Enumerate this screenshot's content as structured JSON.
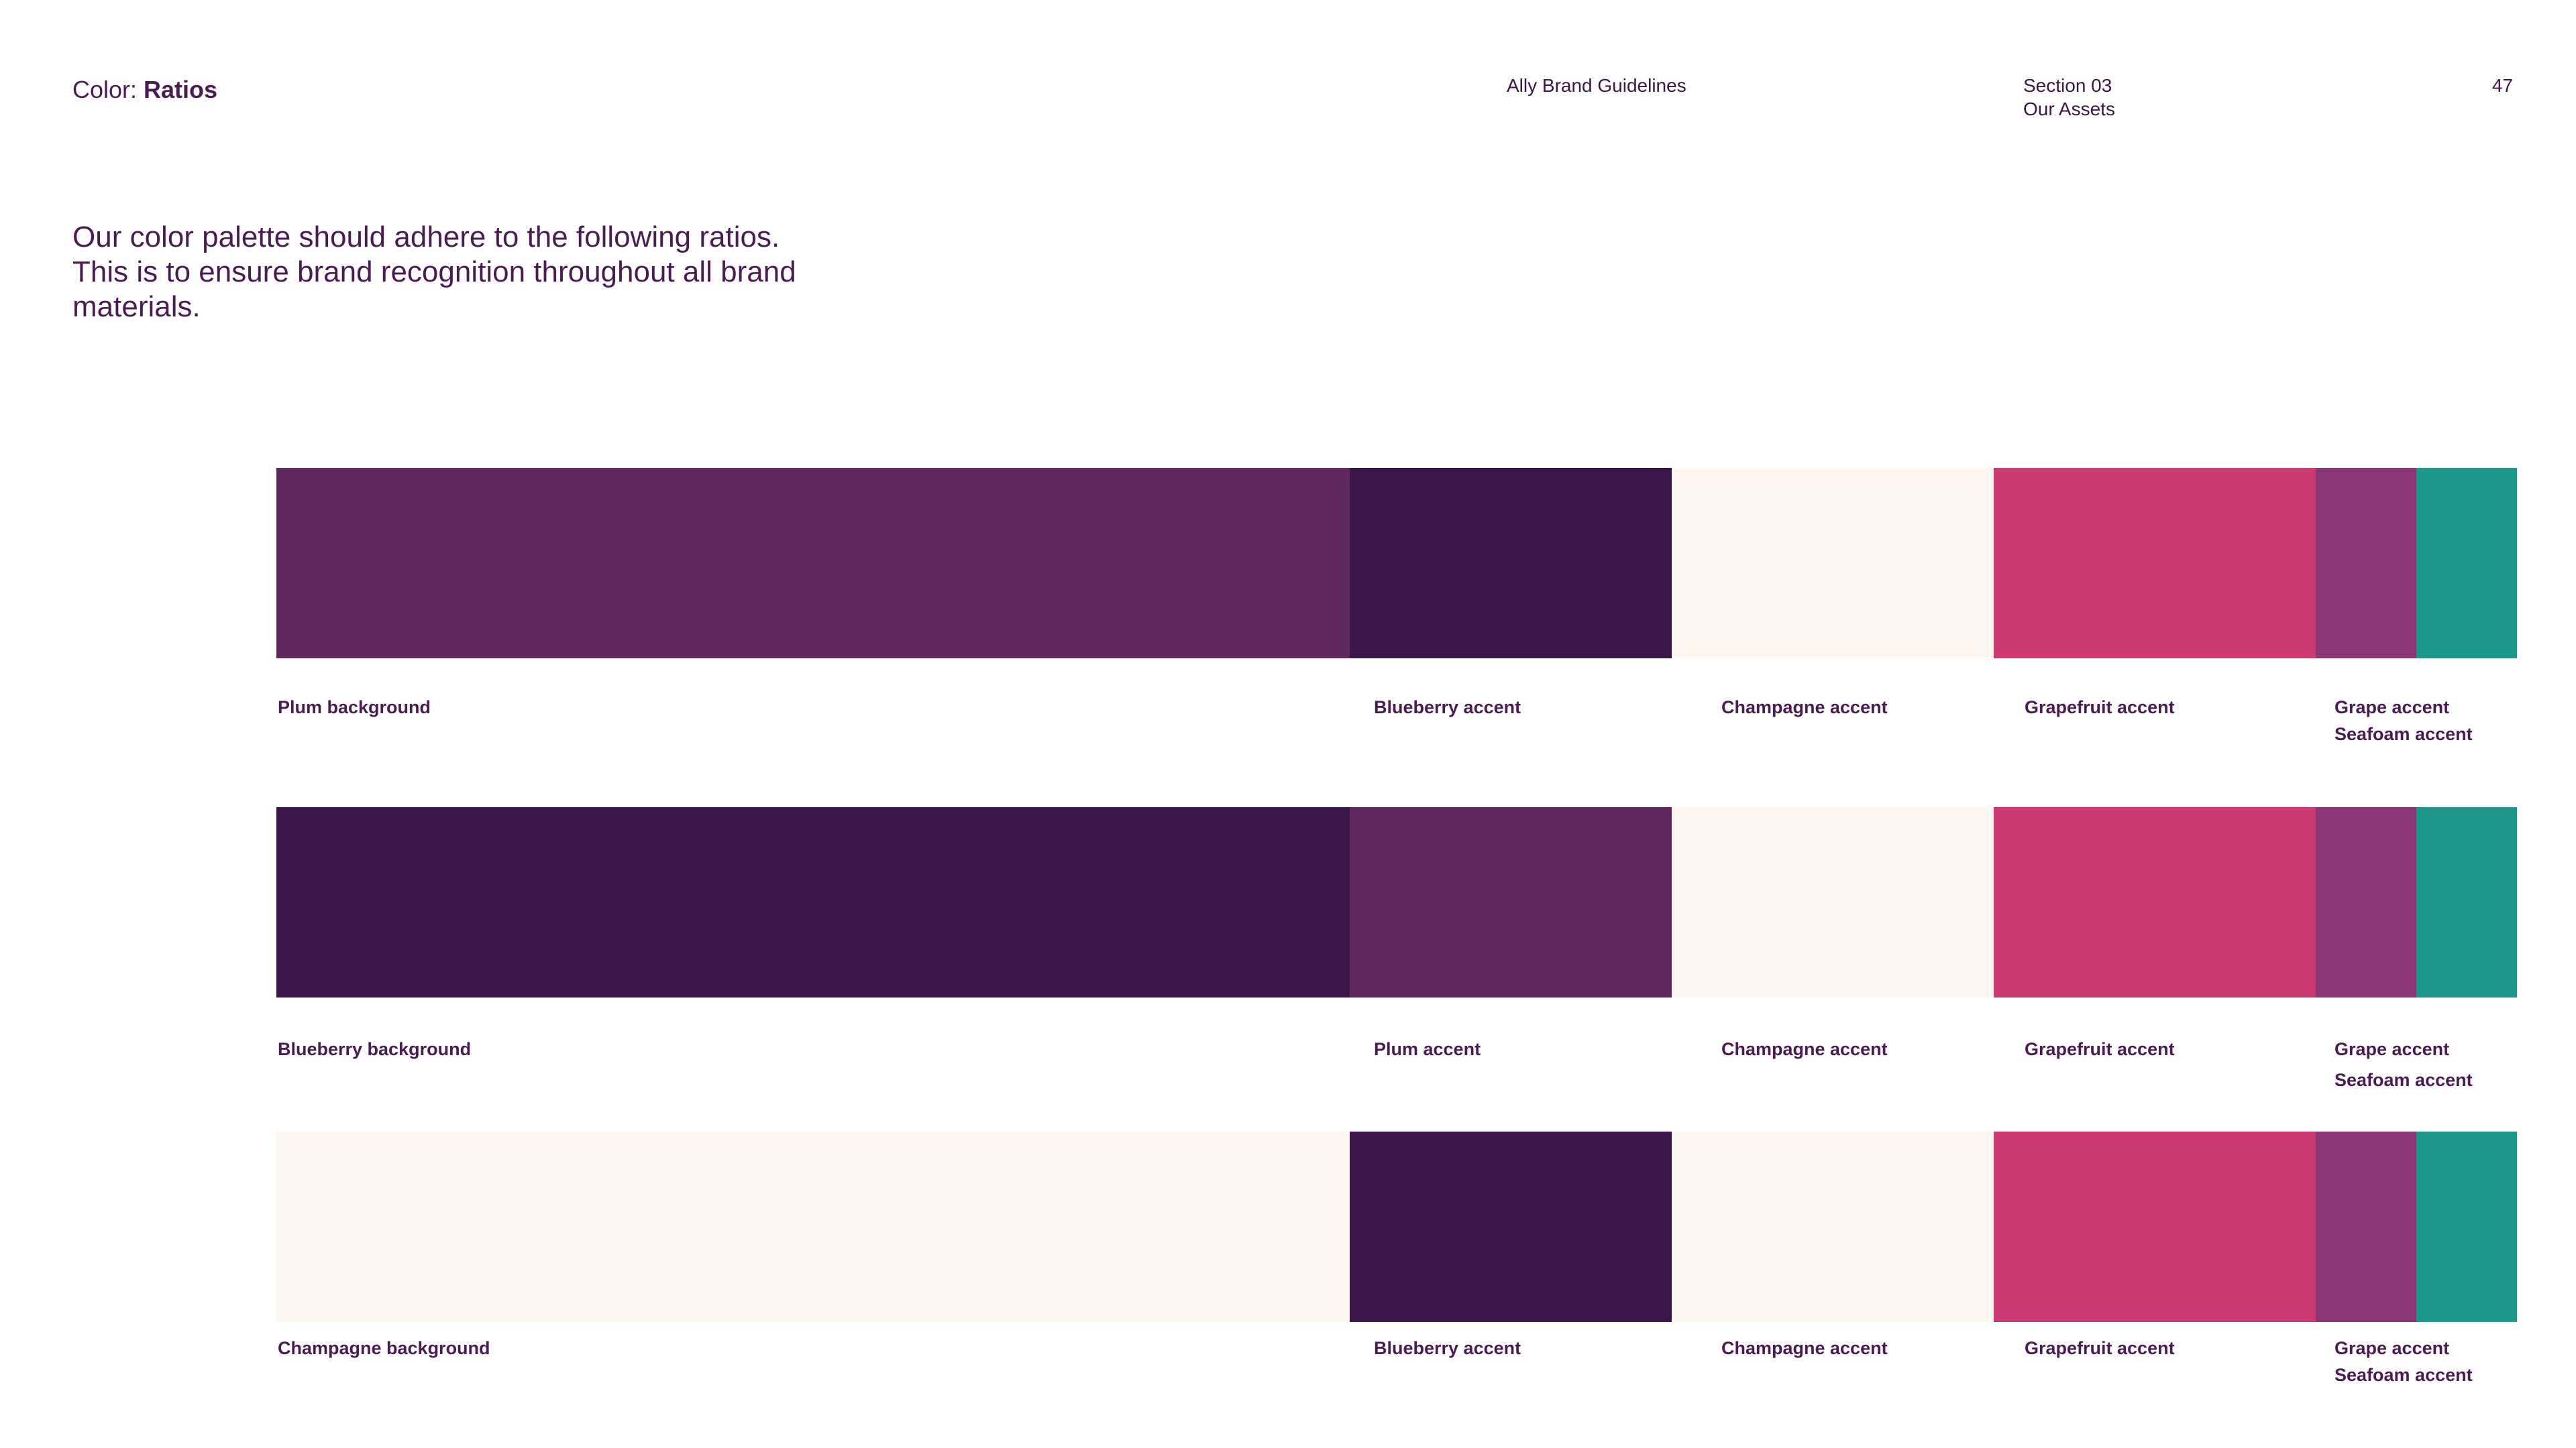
{
  "header": {
    "title_prefix": "Color: ",
    "title_emphasis": "Ratios",
    "brand": "Ally Brand Guidelines",
    "section_number": "Section 03",
    "section_name": "Our Assets",
    "page_number": "47"
  },
  "intro": "Our color palette should adhere to the following ratios. This is to ensure brand recognition throughout all brand materials.",
  "colors": {
    "plum": "#5f285d",
    "blueberry": "#3a1748",
    "champagne": "#fdf6f1",
    "grapefruit": "#cc3a72",
    "grape": "#8b3674",
    "seafoam": "#1d978a"
  },
  "rows": [
    {
      "labels": {
        "background": "Plum background",
        "accent1": "Blueberry accent",
        "accent2": "Champagne accent",
        "accent3": "Grapefruit accent",
        "accent4": "Grape accent",
        "accent5": "Seafoam accent"
      },
      "swatches": [
        "plum",
        "blueberry",
        "champagne",
        "grapefruit",
        "grape",
        "seafoam"
      ]
    },
    {
      "labels": {
        "background": "Blueberry background",
        "accent1": "Plum accent",
        "accent2": "Champagne accent",
        "accent3": "Grapefruit accent",
        "accent4": "Grape accent",
        "accent5": "Seafoam accent"
      },
      "swatches": [
        "blueberry",
        "plum",
        "champagne",
        "grapefruit",
        "grape",
        "seafoam"
      ]
    },
    {
      "labels": {
        "background": "Champagne background",
        "accent1": "Blueberry accent",
        "accent2": "Champagne accent",
        "accent3": "Grapefruit accent",
        "accent4": "Grape accent",
        "accent5": "Seafoam accent"
      },
      "swatches": [
        "champagne",
        "blueberry",
        "champagne",
        "grapefruit",
        "grape",
        "seafoam"
      ]
    }
  ]
}
